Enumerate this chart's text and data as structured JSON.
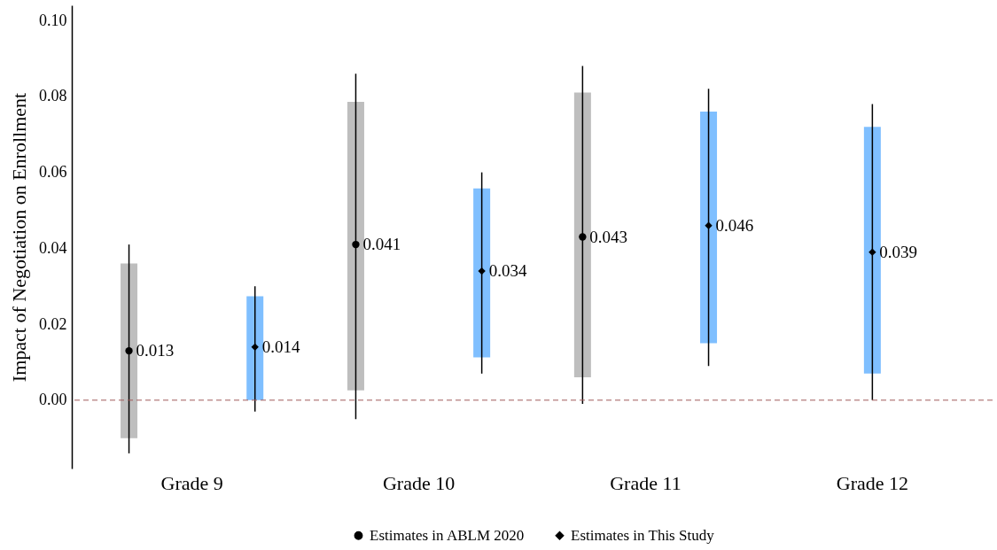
{
  "chart_data": {
    "type": "scatter",
    "ylabel": "Impact of Negotiation on Enrollment",
    "categories": [
      "Grade 9",
      "Grade 10",
      "Grade 11",
      "Grade 12"
    ],
    "ylim": [
      -0.018,
      0.104
    ],
    "yticks": [
      {
        "value": 0,
        "label": "0.00"
      },
      {
        "value": 0.02,
        "label": "0.02"
      },
      {
        "value": 0.04,
        "label": "0.04"
      },
      {
        "value": 0.06,
        "label": "0.06"
      },
      {
        "value": 0.08,
        "label": "0.08"
      },
      {
        "value": 0.1,
        "label": "0.10"
      }
    ],
    "legend": "bottom",
    "ref_lines": [
      {
        "axis": "y",
        "value": 0,
        "color": "#a05a5a",
        "line_style": "dashed"
      }
    ],
    "series": [
      {
        "type": "bar",
        "color": "#bebebe",
        "base": [
          -0.01,
          0.0026,
          0.006,
          null
        ],
        "values": [
          0.046,
          0.076,
          0.075,
          null
        ]
      },
      {
        "type": "bar",
        "color": "#7fbfff",
        "base": [
          0.0,
          0.0113,
          0.015,
          0.007
        ],
        "values": [
          0.0274,
          0.0445,
          0.061,
          0.065
        ]
      },
      {
        "name": "Estimates in ABLM 2020",
        "color": "#000000",
        "marker": "circle",
        "values": [
          0.013,
          0.041,
          0.043,
          null
        ],
        "errors": [
          [
            -0.014,
            0.041
          ],
          [
            -0.005,
            0.086
          ],
          [
            -0.001,
            0.088
          ],
          null
        ],
        "value_labels": [
          "0.013",
          "0.041",
          "0.043",
          null
        ]
      },
      {
        "name": "Estimates in This Study",
        "color": "#000000",
        "marker": "diamond",
        "values": [
          0.014,
          0.034,
          0.046,
          0.039
        ],
        "errors": [
          [
            -0.003,
            0.03
          ],
          [
            0.007,
            0.06
          ],
          [
            0.009,
            0.082
          ],
          [
            0.0,
            0.078
          ]
        ],
        "value_labels": [
          "0.014",
          "0.034",
          "0.046",
          "0.039"
        ]
      }
    ]
  }
}
